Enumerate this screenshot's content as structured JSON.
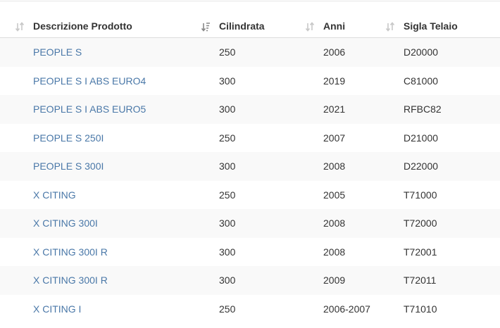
{
  "table": {
    "headers": [
      "Descrizione Prodotto",
      "Cilindrata",
      "Anni",
      "Sigla Telaio"
    ],
    "rows": [
      [
        "PEOPLE S",
        "250",
        "2006",
        "D20000"
      ],
      [
        "PEOPLE S I ABS EURO4",
        "300",
        "2019",
        "C81000"
      ],
      [
        "PEOPLE S I ABS EURO5",
        "300",
        "2021",
        "RFBC82"
      ],
      [
        "PEOPLE S 250I",
        "250",
        "2007",
        "D21000"
      ],
      [
        "PEOPLE S 300I",
        "300",
        "2008",
        "D22000"
      ],
      [
        "X CITING",
        "250",
        "2005",
        "T71000"
      ],
      [
        "X CITING 300I",
        "300",
        "2008",
        "T72000"
      ],
      [
        "X CITING 300I R",
        "300",
        "2008",
        "T72001"
      ],
      [
        "X CITING 300I R",
        "300",
        "2009",
        "T72011"
      ],
      [
        "X CITING I",
        "250",
        "2006-2007",
        "T71010"
      ]
    ]
  }
}
